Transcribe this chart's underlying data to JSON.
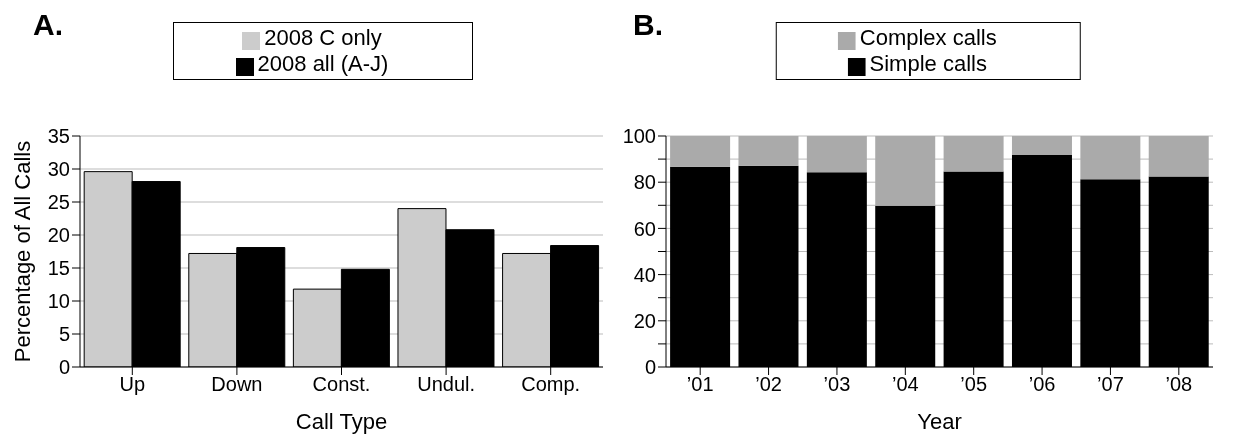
{
  "chart_data": [
    {
      "type": "bar",
      "title": "A.",
      "xlabel": "Call Type",
      "ylabel": "Percentage of All Calls",
      "categories": [
        "Up",
        "Down",
        "Const.",
        "Undul.",
        "Comp."
      ],
      "series": [
        {
          "name": "2008 C only",
          "color": "#cccccc",
          "values": [
            29.6,
            17.2,
            11.8,
            24.0,
            17.2
          ]
        },
        {
          "name": "2008 all (A-J)",
          "color": "#000000",
          "values": [
            28.1,
            18.1,
            14.8,
            20.8,
            18.4
          ]
        }
      ],
      "ylim": [
        0,
        35
      ],
      "yticks": [
        0,
        5,
        10,
        15,
        20,
        25,
        30,
        35
      ],
      "grid": "y",
      "legend": "top"
    },
    {
      "type": "bar",
      "title": "B.",
      "xlabel": "Year",
      "categories": [
        "’01",
        "’02",
        "’03",
        "’04",
        "’05",
        "’06",
        "’07",
        "’08"
      ],
      "stacked": true,
      "series": [
        {
          "name": "Simple calls",
          "color": "#000000",
          "values": [
            86.7,
            87.1,
            84.3,
            69.8,
            84.6,
            91.8,
            81.3,
            82.5
          ]
        },
        {
          "name": "Complex calls",
          "color": "#aaaaaa",
          "values": [
            13.3,
            12.9,
            15.7,
            30.2,
            15.4,
            8.2,
            18.7,
            17.5
          ]
        }
      ],
      "ylim": [
        0,
        100
      ],
      "yticks": [
        0,
        {
          "value": 10,
          "label": null
        },
        20,
        {
          "value": 30,
          "label": null
        },
        40,
        {
          "value": 50,
          "label": null
        },
        60,
        {
          "value": 70,
          "label": null
        },
        80,
        {
          "value": 90,
          "label": null
        },
        100
      ],
      "grid": "y",
      "legend": "top"
    }
  ]
}
